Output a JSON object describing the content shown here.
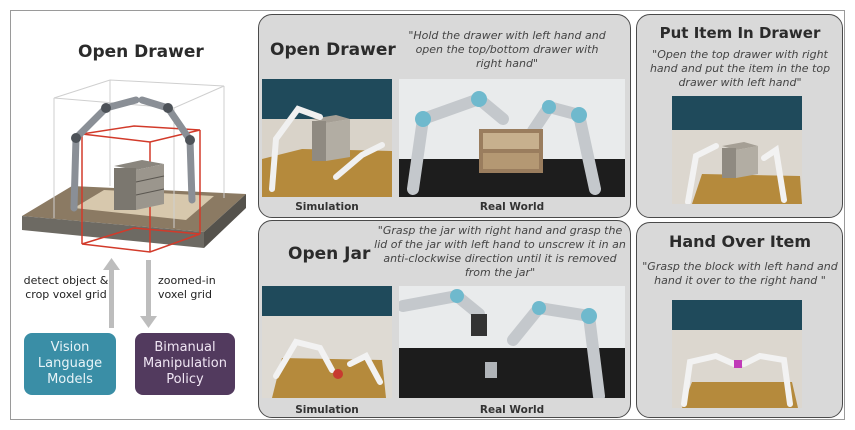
{
  "left": {
    "title": "Open Drawer",
    "up_label": "detect object & crop voxel grid",
    "down_label": "zoomed-in voxel grid",
    "vlm": "Vision Language Models",
    "policy": "Bimanual Manipulation Policy"
  },
  "open_drawer": {
    "title": "Open Drawer",
    "instruction": "\"Hold the drawer with left hand and open the top/bottom drawer with right hand\"",
    "sim_caption": "Simulation",
    "real_caption": "Real World"
  },
  "open_jar": {
    "title": "Open Jar",
    "instruction": "\"Grasp the jar with right hand and grasp the lid of the jar with left hand to unscrew it in an anti-clockwise direction until it is removed from the jar\"",
    "sim_caption": "Simulation",
    "real_caption": "Real World"
  },
  "put_item": {
    "title": "Put Item In Drawer",
    "instruction": "\"Open the top drawer with right hand and put the item in the top drawer with left hand\""
  },
  "hand_over": {
    "title": "Hand Over Item",
    "instruction": "\"Grasp the block with left hand and hand it over to the right hand \""
  },
  "colors": {
    "vlm_box": "#3a8ea6",
    "policy_box": "#523a5e",
    "panel_bg": "#d9d9d9",
    "arrow": "#bdbdbd"
  }
}
